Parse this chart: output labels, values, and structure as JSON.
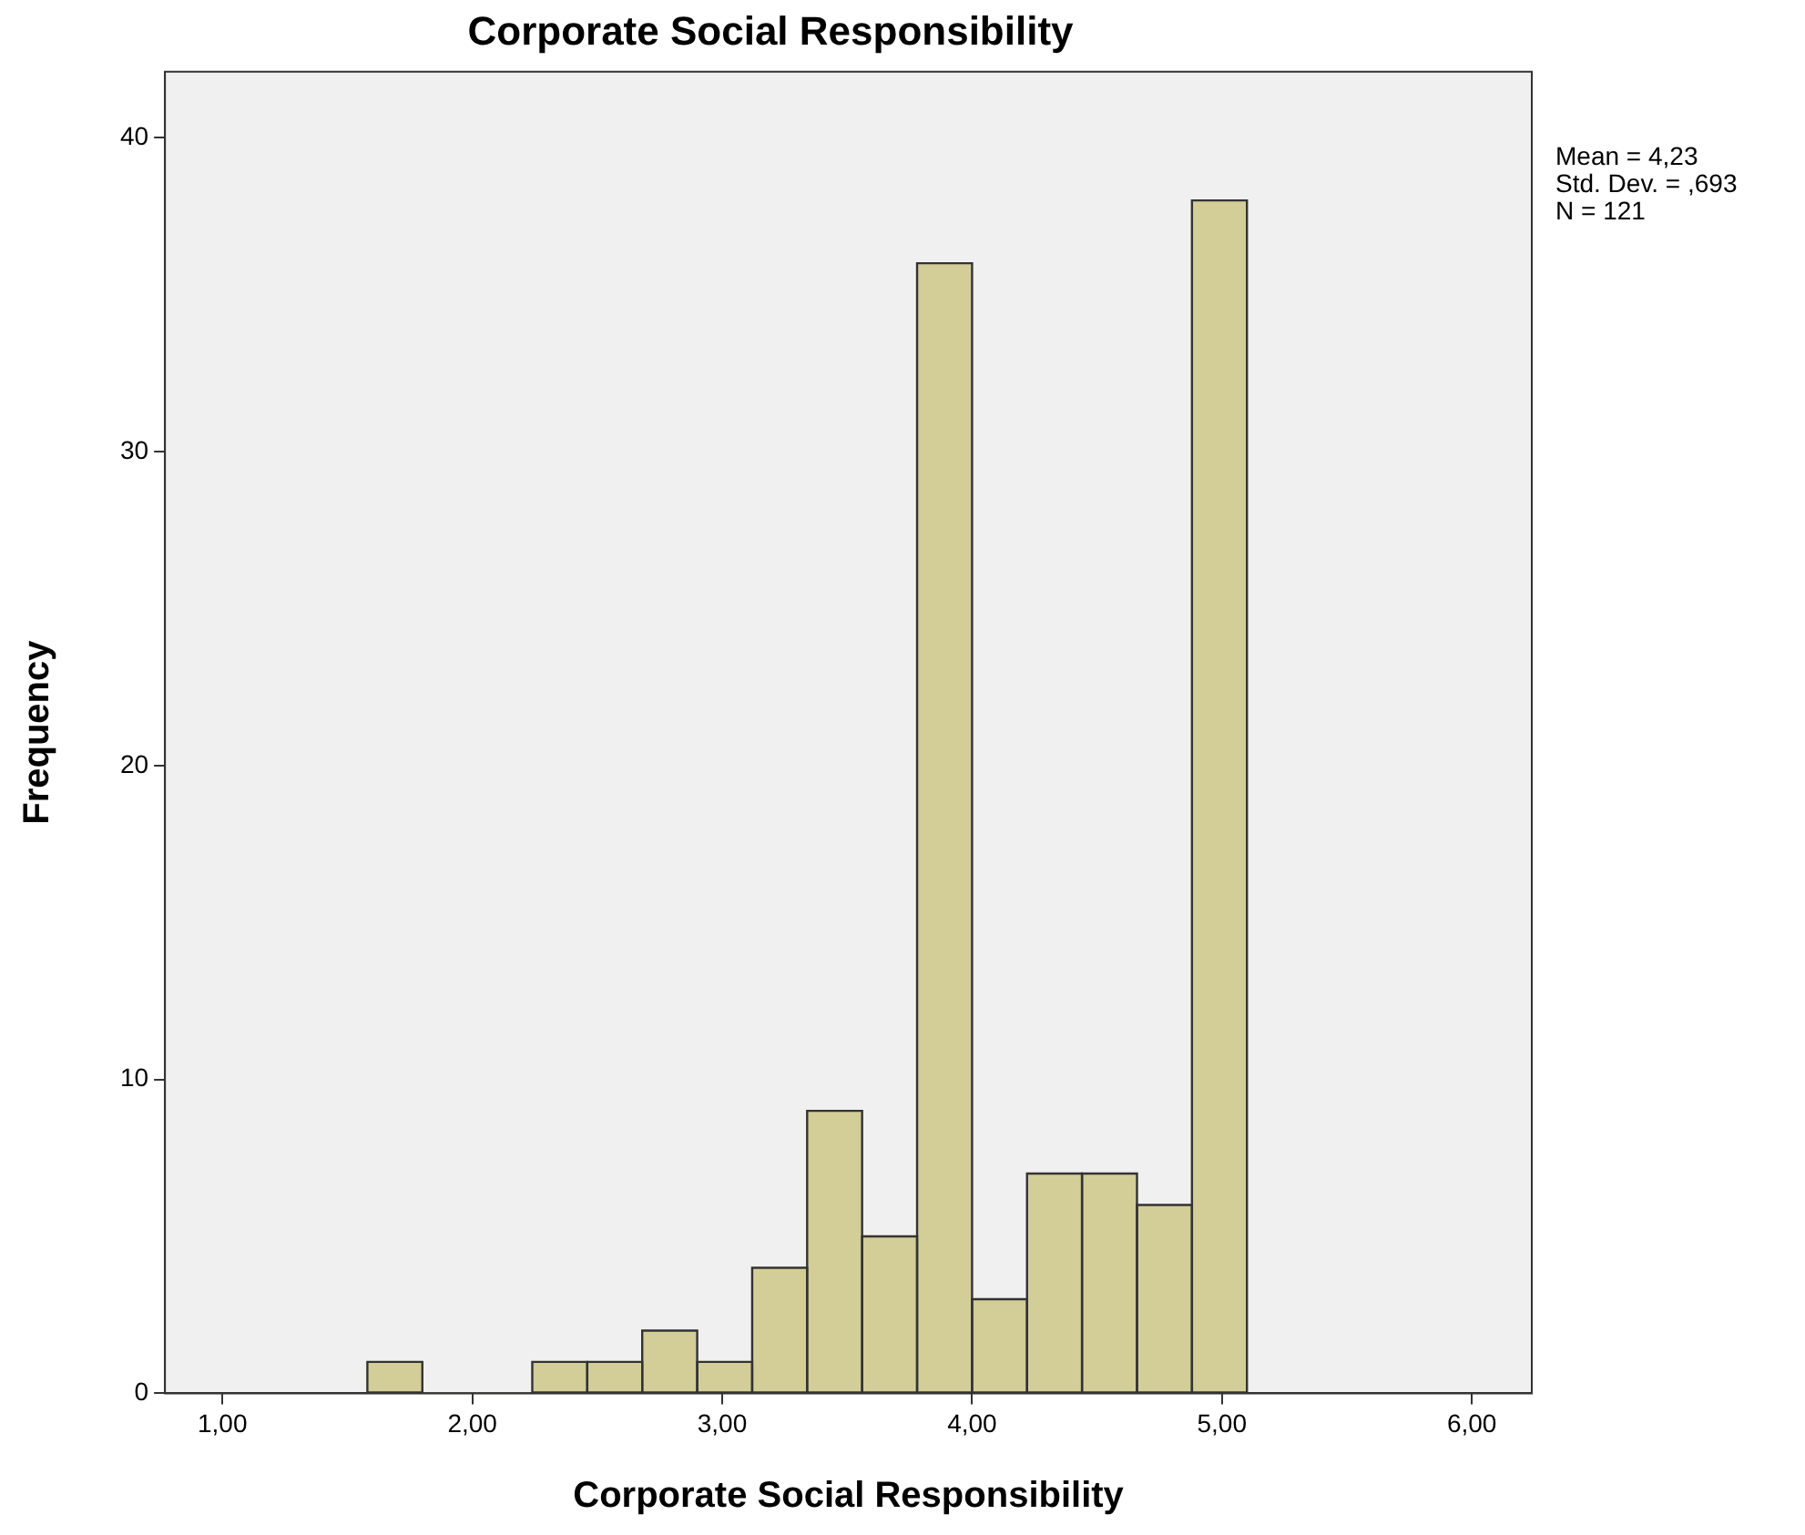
{
  "chart_data": {
    "type": "histogram",
    "title": "Corporate Social Responsibility",
    "xlabel": "Corporate Social Responsibility",
    "ylabel": "Frequency",
    "bins": [
      1.58,
      1.8,
      2.02,
      2.24,
      2.46,
      2.68,
      2.9,
      3.12,
      3.34,
      3.56,
      3.78,
      4.0,
      4.22,
      4.44,
      4.66,
      4.88,
      5.1
    ],
    "values": [
      1,
      0,
      0,
      1,
      1,
      2,
      1,
      4,
      9,
      5,
      36,
      3,
      7,
      7,
      6,
      38
    ],
    "color": "#d3ce98",
    "xlim": [
      0.77,
      6.24
    ],
    "xticks": [
      {
        "value": 1,
        "label": "1,00"
      },
      {
        "value": 2,
        "label": "2,00"
      },
      {
        "value": 3,
        "label": "3,00"
      },
      {
        "value": 4,
        "label": "4,00"
      },
      {
        "value": 5,
        "label": "5,00"
      },
      {
        "value": 6,
        "label": "6,00"
      }
    ],
    "ylim": [
      0,
      42.1
    ],
    "yticks": [
      0,
      10,
      20,
      30,
      40
    ],
    "grid": false,
    "legend": false,
    "annotations": [
      "Mean = 4,23",
      "Std. Dev. = ,693",
      "N = 121"
    ]
  }
}
